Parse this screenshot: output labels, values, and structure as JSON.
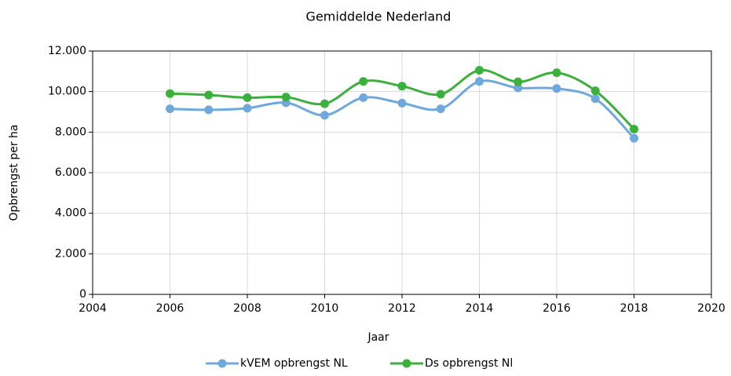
{
  "chart_data": {
    "type": "line",
    "title": "Gemiddelde Nederland",
    "x_label": "Jaar",
    "y_label": "Opbrengst per ha",
    "x": [
      2006,
      2007,
      2008,
      2009,
      2010,
      2011,
      2012,
      2013,
      2014,
      2015,
      2016,
      2017,
      2018
    ],
    "series": [
      {
        "name": "kVEM opbrengst NL",
        "color": "#6fa8dc",
        "values": [
          9150,
          9100,
          9180,
          9450,
          8830,
          9700,
          9430,
          9150,
          10500,
          10180,
          10150,
          9650,
          7700
        ]
      },
      {
        "name": "Ds opbrengst Nl",
        "color": "#3cb03c",
        "values": [
          9900,
          9830,
          9700,
          9730,
          9400,
          10500,
          10270,
          9870,
          11050,
          10480,
          10930,
          10040,
          8150
        ]
      }
    ],
    "xlim": [
      2004,
      2020
    ],
    "xticks": [
      2004,
      2006,
      2008,
      2010,
      2012,
      2014,
      2016,
      2018,
      2020
    ],
    "ylim": [
      0,
      12000
    ],
    "yticks": [
      0,
      {
        "value": 2000,
        "label": "2.000"
      },
      {
        "value": 4000,
        "label": "4.000"
      },
      {
        "value": 6000,
        "label": "6.000"
      },
      {
        "value": 8000,
        "label": "8.000"
      },
      {
        "value": 10000,
        "label": "10.000"
      },
      {
        "value": 12000,
        "label": "12.000"
      }
    ],
    "grid": true,
    "smooth": true,
    "legend": "bottom"
  }
}
